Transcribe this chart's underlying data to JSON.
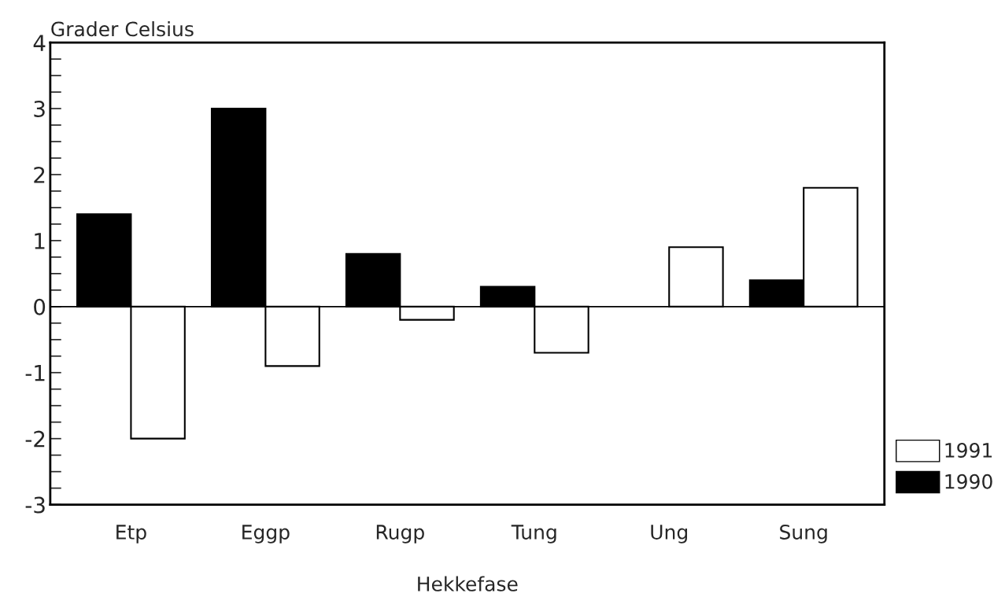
{
  "chart_data": {
    "type": "bar",
    "ylabel": "Grader Celsius",
    "xlabel": "Hekkefase",
    "categories": [
      "Etp",
      "Eggp",
      "Rugp",
      "Tung",
      "Ung",
      "Sung"
    ],
    "series": [
      {
        "name": "1990",
        "color": "#000000",
        "values": [
          1.4,
          3.0,
          0.8,
          0.3,
          null,
          0.4
        ]
      },
      {
        "name": "1991",
        "color": "#ffffff",
        "values": [
          -2.0,
          -0.9,
          -0.2,
          -0.7,
          0.9,
          1.8
        ]
      }
    ],
    "ylim": [
      -3,
      4
    ],
    "yticks": [
      -3,
      {
        "value": -2.75,
        "label": null
      },
      {
        "value": -2.5,
        "label": null
      },
      {
        "value": -2.25,
        "label": null
      },
      -2,
      {
        "value": -1.75,
        "label": null
      },
      {
        "value": -1.5,
        "label": null
      },
      {
        "value": -1.25,
        "label": null
      },
      -1,
      {
        "value": -0.75,
        "label": null
      },
      {
        "value": -0.5,
        "label": null
      },
      {
        "value": -0.25,
        "label": null
      },
      0,
      {
        "value": 0.25,
        "label": null
      },
      {
        "value": 0.5,
        "label": null
      },
      {
        "value": 0.75,
        "label": null
      },
      1,
      {
        "value": 1.25,
        "label": null
      },
      {
        "value": 1.5,
        "label": null
      },
      {
        "value": 1.75,
        "label": null
      },
      2,
      {
        "value": 2.25,
        "label": null
      },
      {
        "value": 2.5,
        "label": null
      },
      {
        "value": 2.75,
        "label": null
      },
      3,
      {
        "value": 3.25,
        "label": null
      },
      {
        "value": 3.5,
        "label": null
      },
      {
        "value": 3.75,
        "label": null
      },
      4
    ],
    "ref_lines": [
      {
        "axis": "y",
        "value": 0,
        "color": "#000000"
      }
    ],
    "grid": false,
    "legend": "bottom right"
  }
}
